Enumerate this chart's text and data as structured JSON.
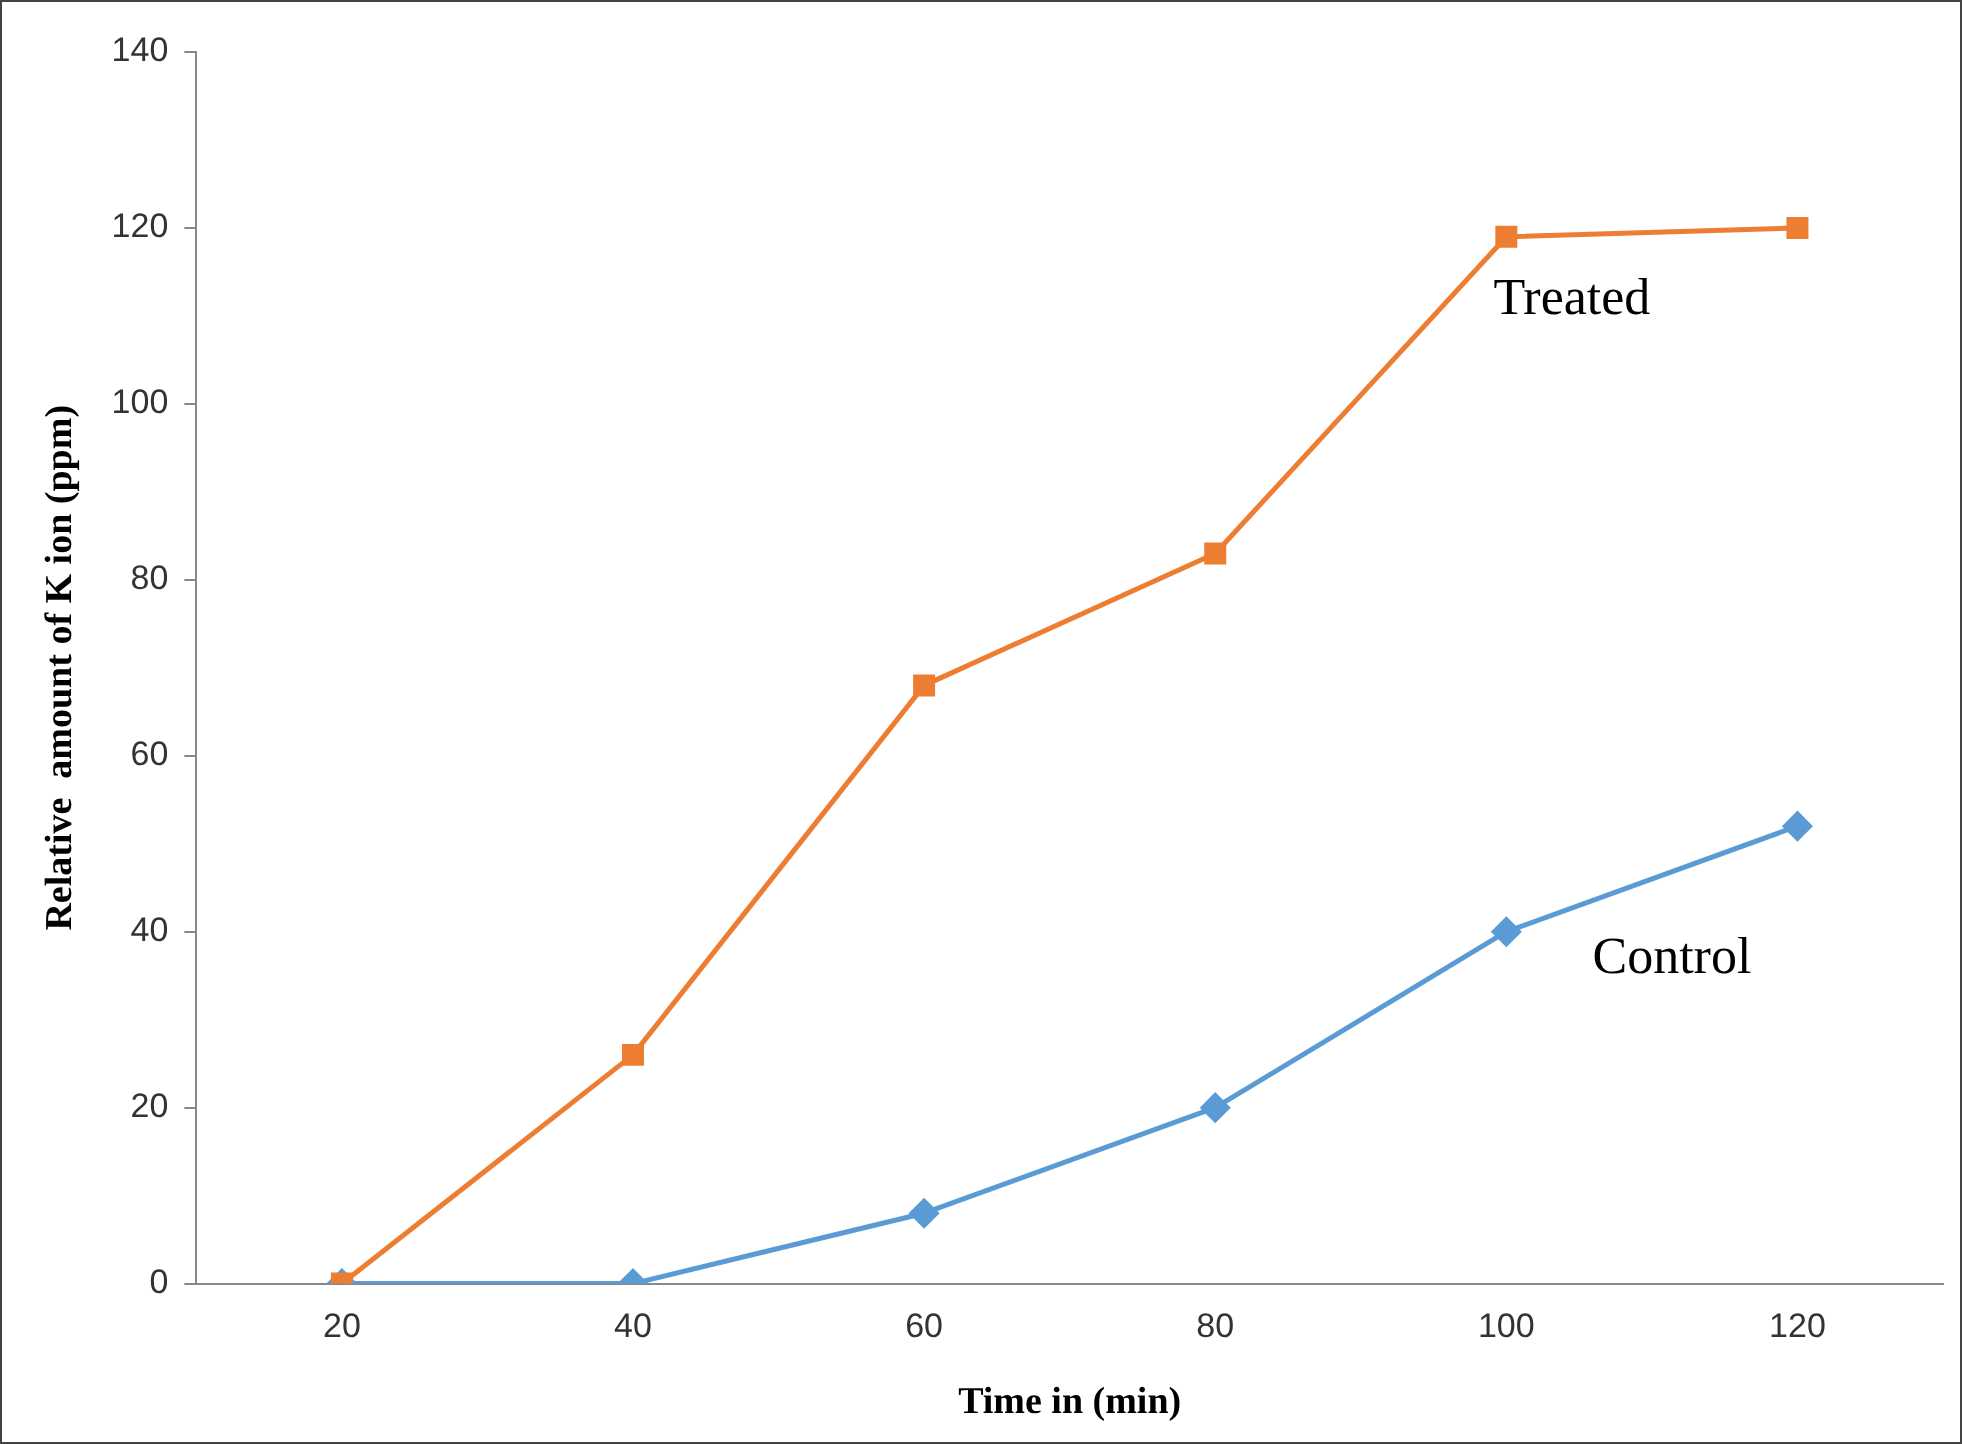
{
  "chart_data": {
    "type": "line",
    "xlabel": "Time in (min)",
    "ylabel": "Relative  amount of K ion (ppm)",
    "categories": [
      "20",
      "40",
      "60",
      "80",
      "100",
      "120"
    ],
    "series": [
      {
        "name": "Treated",
        "color": "#ed7d31",
        "values": [
          0,
          26,
          68,
          83,
          119,
          120
        ],
        "marker": "square"
      },
      {
        "name": "Control",
        "color": "#5b9bd5",
        "values": [
          0,
          0,
          8,
          20,
          40,
          52
        ],
        "marker": "diamond"
      }
    ],
    "ylim": [
      0,
      140
    ],
    "yticks": [
      0,
      20,
      40,
      60,
      80,
      100,
      120,
      140
    ],
    "grid": false,
    "legend": false,
    "line_style": "solid"
  }
}
